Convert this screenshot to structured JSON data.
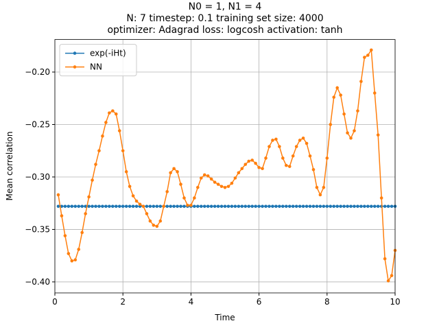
{
  "chart_data": {
    "type": "line",
    "title": [
      "N0 = 1, N1 = 4",
      "N: 7 timestep: 0.1 training set size: 4000",
      "optimizer: Adagrad loss: logcosh activation: tanh"
    ],
    "x_label": "Time",
    "y_label": "Mean correlation",
    "x": [
      0.1,
      0.2,
      0.3,
      0.4,
      0.5,
      0.6,
      0.7,
      0.8,
      0.9,
      1.0,
      1.1,
      1.2,
      1.3,
      1.4,
      1.5,
      1.6,
      1.7,
      1.8,
      1.9,
      2.0,
      2.1,
      2.2,
      2.3,
      2.4,
      2.5,
      2.6,
      2.7,
      2.8,
      2.9,
      3.0,
      3.1,
      3.2,
      3.3,
      3.4,
      3.5,
      3.6,
      3.7,
      3.8,
      3.9,
      4.0,
      4.1,
      4.2,
      4.3,
      4.4,
      4.5,
      4.6,
      4.7,
      4.8,
      4.9,
      5.0,
      5.1,
      5.2,
      5.3,
      5.4,
      5.5,
      5.6,
      5.7,
      5.8,
      5.9,
      6.0,
      6.1,
      6.2,
      6.3,
      6.4,
      6.5,
      6.6,
      6.7,
      6.8,
      6.9,
      7.0,
      7.1,
      7.2,
      7.3,
      7.4,
      7.5,
      7.6,
      7.7,
      7.8,
      7.9,
      8.0,
      8.1,
      8.2,
      8.3,
      8.4,
      8.5,
      8.6,
      8.7,
      8.8,
      8.9,
      9.0,
      9.1,
      9.2,
      9.3,
      9.4,
      9.5,
      9.6,
      9.7,
      9.8,
      9.9,
      10.0
    ],
    "series": [
      {
        "name": "exp(-iHt)",
        "color": "#1f77b4",
        "values": [
          -0.328,
          -0.328,
          -0.328,
          -0.328,
          -0.328,
          -0.328,
          -0.328,
          -0.328,
          -0.328,
          -0.328,
          -0.328,
          -0.328,
          -0.328,
          -0.328,
          -0.328,
          -0.328,
          -0.328,
          -0.328,
          -0.328,
          -0.328,
          -0.328,
          -0.328,
          -0.328,
          -0.328,
          -0.328,
          -0.328,
          -0.328,
          -0.328,
          -0.328,
          -0.328,
          -0.328,
          -0.328,
          -0.328,
          -0.328,
          -0.328,
          -0.328,
          -0.328,
          -0.328,
          -0.328,
          -0.328,
          -0.328,
          -0.328,
          -0.328,
          -0.328,
          -0.328,
          -0.328,
          -0.328,
          -0.328,
          -0.328,
          -0.328,
          -0.328,
          -0.328,
          -0.328,
          -0.328,
          -0.328,
          -0.328,
          -0.328,
          -0.328,
          -0.328,
          -0.328,
          -0.328,
          -0.328,
          -0.328,
          -0.328,
          -0.328,
          -0.328,
          -0.328,
          -0.328,
          -0.328,
          -0.328,
          -0.328,
          -0.328,
          -0.328,
          -0.328,
          -0.328,
          -0.328,
          -0.328,
          -0.328,
          -0.328,
          -0.328,
          -0.328,
          -0.328,
          -0.328,
          -0.328,
          -0.328,
          -0.328,
          -0.328,
          -0.328,
          -0.328,
          -0.328,
          -0.328,
          -0.328,
          -0.328,
          -0.328,
          -0.328,
          -0.328,
          -0.328,
          -0.328,
          -0.328,
          -0.328
        ]
      },
      {
        "name": "NN",
        "color": "#ff7f0e",
        "values": [
          -0.317,
          -0.337,
          -0.356,
          -0.373,
          -0.38,
          -0.379,
          -0.369,
          -0.353,
          -0.335,
          -0.319,
          -0.303,
          -0.288,
          -0.275,
          -0.261,
          -0.248,
          -0.239,
          -0.237,
          -0.24,
          -0.256,
          -0.275,
          -0.295,
          -0.309,
          -0.318,
          -0.323,
          -0.326,
          -0.328,
          -0.335,
          -0.342,
          -0.346,
          -0.347,
          -0.342,
          -0.328,
          -0.314,
          -0.296,
          -0.292,
          -0.295,
          -0.307,
          -0.32,
          -0.327,
          -0.327,
          -0.32,
          -0.31,
          -0.301,
          -0.298,
          -0.299,
          -0.302,
          -0.305,
          -0.307,
          -0.309,
          -0.31,
          -0.309,
          -0.306,
          -0.301,
          -0.296,
          -0.292,
          -0.288,
          -0.285,
          -0.284,
          -0.287,
          -0.291,
          -0.292,
          -0.282,
          -0.271,
          -0.265,
          -0.264,
          -0.271,
          -0.282,
          -0.289,
          -0.29,
          -0.28,
          -0.271,
          -0.265,
          -0.263,
          -0.268,
          -0.28,
          -0.293,
          -0.31,
          -0.317,
          -0.31,
          -0.282,
          -0.25,
          -0.224,
          -0.215,
          -0.222,
          -0.24,
          -0.258,
          -0.263,
          -0.256,
          -0.237,
          -0.209,
          -0.186,
          -0.184,
          -0.179,
          -0.22,
          -0.26,
          -0.32,
          -0.378,
          -0.399,
          -0.394,
          -0.37
        ]
      }
    ],
    "xlim": [
      0,
      10
    ],
    "xticks": [
      0,
      2,
      4,
      6,
      8,
      10
    ],
    "ylim": [
      -0.4105,
      -0.169
    ],
    "yticks": [
      {
        "value": -0.4,
        "label": "−0.40"
      },
      {
        "value": -0.35,
        "label": "−0.35"
      },
      {
        "value": -0.3,
        "label": "−0.30"
      },
      {
        "value": -0.25,
        "label": "−0.25"
      },
      {
        "value": -0.2,
        "label": "−0.20"
      }
    ],
    "grid": true,
    "legend": "upper left"
  }
}
